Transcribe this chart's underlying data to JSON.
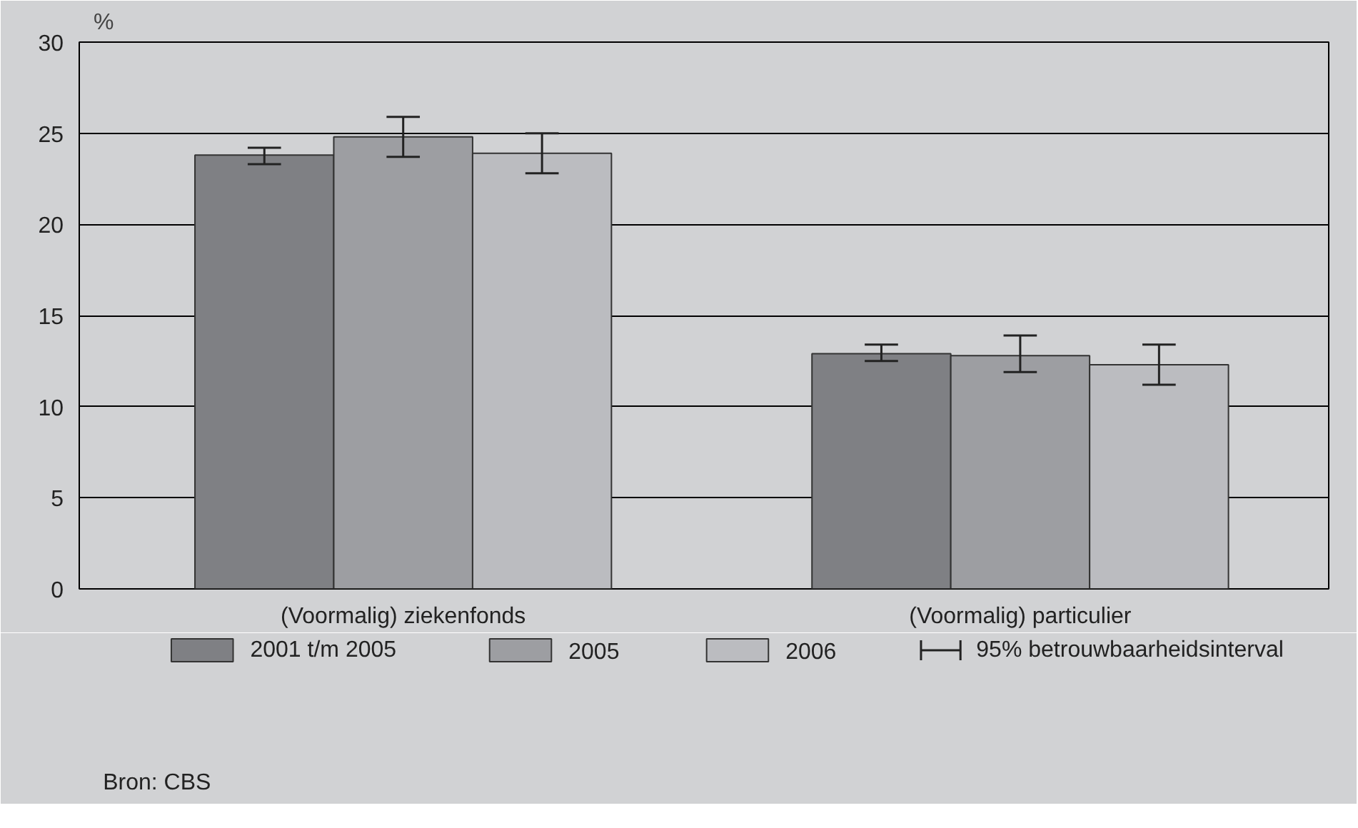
{
  "chart_data": {
    "type": "bar",
    "ylabel": "%",
    "categories": [
      "(Voormalig) ziekenfonds",
      "(Voormalig) particulier"
    ],
    "series": [
      {
        "name": "2001 t/m 2005",
        "color": "#7f8084",
        "values": [
          23.8,
          12.9
        ],
        "errors": [
          [
            23.3,
            24.2
          ],
          [
            12.5,
            13.4
          ]
        ]
      },
      {
        "name": "2005",
        "color": "#9d9ea2",
        "values": [
          24.8,
          12.8
        ],
        "errors": [
          [
            23.7,
            25.9
          ],
          [
            11.9,
            13.9
          ]
        ]
      },
      {
        "name": "2006",
        "color": "#bbbcc0",
        "values": [
          23.9,
          12.3
        ],
        "errors": [
          [
            22.8,
            25.0
          ],
          [
            11.2,
            13.4
          ]
        ]
      }
    ],
    "ylim": [
      0,
      30
    ],
    "yticks": [
      0,
      5,
      10,
      15,
      20,
      25,
      30
    ],
    "grid": "y",
    "legend": "bottom",
    "annotations": [
      "95% betrouwbaarheidsinterval",
      "Bron: CBS"
    ]
  }
}
